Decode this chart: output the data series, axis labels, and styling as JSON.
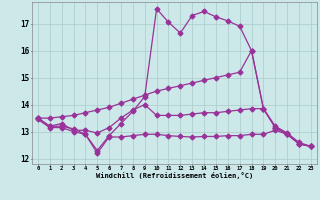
{
  "background_color": "#cce8e8",
  "grid_color": "#aacccc",
  "line_color": "#993399",
  "xlabel": "Windchill (Refroidissement éolien,°C)",
  "xlim": [
    -0.5,
    23.5
  ],
  "ylim": [
    11.8,
    17.8
  ],
  "yticks": [
    12,
    13,
    14,
    15,
    16,
    17
  ],
  "xticks": [
    0,
    1,
    2,
    3,
    4,
    5,
    6,
    7,
    8,
    9,
    10,
    11,
    12,
    13,
    14,
    15,
    16,
    17,
    18,
    19,
    20,
    21,
    22,
    23
  ],
  "series": [
    {
      "x": [
        0,
        1,
        2,
        3,
        4,
        5,
        6,
        7,
        8,
        9,
        10,
        11,
        12,
        13,
        14,
        15,
        16,
        17,
        18,
        19,
        20,
        21,
        22,
        23
      ],
      "y": [
        13.5,
        13.2,
        13.2,
        13.1,
        12.9,
        12.3,
        12.85,
        13.3,
        13.75,
        14.3,
        17.55,
        17.05,
        16.65,
        17.3,
        17.45,
        17.25,
        17.1,
        16.9,
        16.0,
        13.85,
        13.15,
        12.9,
        12.55,
        12.45
      ],
      "markersize": 2.5,
      "linewidth": 0.9
    },
    {
      "x": [
        0,
        1,
        2,
        3,
        4,
        5,
        6,
        7,
        8,
        9,
        10,
        11,
        12,
        13,
        14,
        15,
        16,
        17,
        18,
        19,
        20,
        21,
        22,
        23
      ],
      "y": [
        13.5,
        13.2,
        13.3,
        13.05,
        13.05,
        12.95,
        13.15,
        13.5,
        13.8,
        14.0,
        13.6,
        13.6,
        13.6,
        13.65,
        13.7,
        13.7,
        13.75,
        13.8,
        13.85,
        13.85,
        13.2,
        12.95,
        12.6,
        12.45
      ],
      "markersize": 2.5,
      "linewidth": 0.9
    },
    {
      "x": [
        0,
        1,
        2,
        3,
        4,
        5,
        6,
        7,
        8,
        9,
        10,
        11,
        12,
        13,
        14,
        15,
        16,
        17,
        18,
        19,
        20,
        21,
        22,
        23
      ],
      "y": [
        13.45,
        13.15,
        13.15,
        13.0,
        12.9,
        12.2,
        12.8,
        12.8,
        12.85,
        12.9,
        12.9,
        12.85,
        12.82,
        12.8,
        12.82,
        12.82,
        12.85,
        12.85,
        12.9,
        12.9,
        13.05,
        12.9,
        12.55,
        12.45
      ],
      "markersize": 2.5,
      "linewidth": 0.9
    },
    {
      "x": [
        0,
        1,
        2,
        3,
        4,
        5,
        6,
        7,
        8,
        9,
        10,
        11,
        12,
        13,
        14,
        15,
        16,
        17,
        18,
        19,
        20,
        21,
        22,
        23
      ],
      "y": [
        13.5,
        13.5,
        13.55,
        13.6,
        13.7,
        13.8,
        13.9,
        14.05,
        14.2,
        14.35,
        14.5,
        14.6,
        14.7,
        14.8,
        14.9,
        15.0,
        15.1,
        15.2,
        16.0,
        13.85,
        13.15,
        12.9,
        12.55,
        12.45
      ],
      "markersize": 2.5,
      "linewidth": 0.9
    }
  ]
}
